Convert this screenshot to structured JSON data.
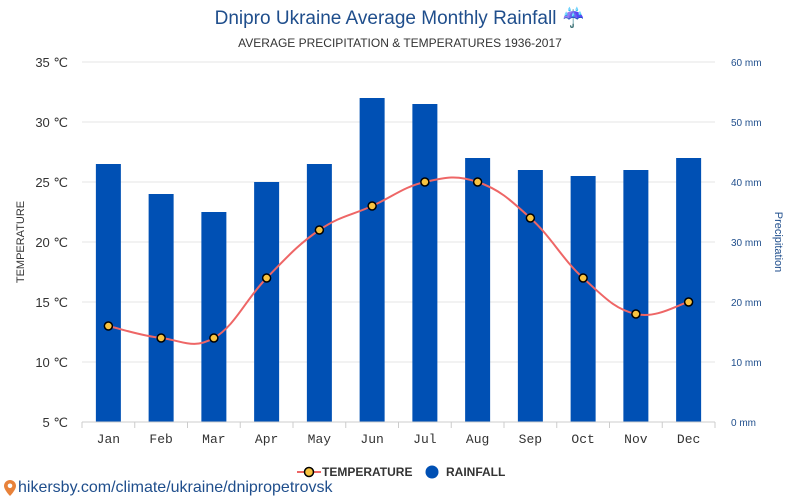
{
  "title": "Dnipro Ukraine Average Monthly Rainfall ☔",
  "subtitle": "AVERAGE PRECIPITATION & TEMPERATURES 1936-2017",
  "source_link": "hikersby.com/climate/ukraine/dnipropetrovsk",
  "chart_data": {
    "type": "bar",
    "categories": [
      "Jan",
      "Feb",
      "Mar",
      "Apr",
      "May",
      "Jun",
      "Jul",
      "Aug",
      "Sep",
      "Oct",
      "Nov",
      "Dec"
    ],
    "series": [
      {
        "name": "TEMPERATURE",
        "type": "line",
        "axis": "left",
        "color": "#ee6666",
        "values": [
          13,
          12,
          12,
          17,
          21,
          23,
          25,
          25,
          22,
          17,
          14,
          15
        ]
      },
      {
        "name": "RAINFALL",
        "type": "bar",
        "axis": "right",
        "color": "#0050b4",
        "values": [
          43,
          38,
          35,
          40,
          43,
          54,
          53,
          44,
          42,
          41,
          42,
          44
        ]
      }
    ],
    "left_axis": {
      "label": "TEMPERATURE",
      "min": 5,
      "max": 35,
      "step": 5,
      "ticks": [
        "5 ℃",
        "10 ℃",
        "15 ℃",
        "20 ℃",
        "25 ℃",
        "30 ℃",
        "35 ℃"
      ]
    },
    "right_axis": {
      "label": "Precipitation",
      "min": 0,
      "max": 60,
      "step": 10,
      "ticks": [
        "0 mm",
        "10 mm",
        "20 mm",
        "30 mm",
        "40 mm",
        "50 mm",
        "60 mm"
      ]
    },
    "grid": true,
    "legend_position": "bottom-center"
  }
}
